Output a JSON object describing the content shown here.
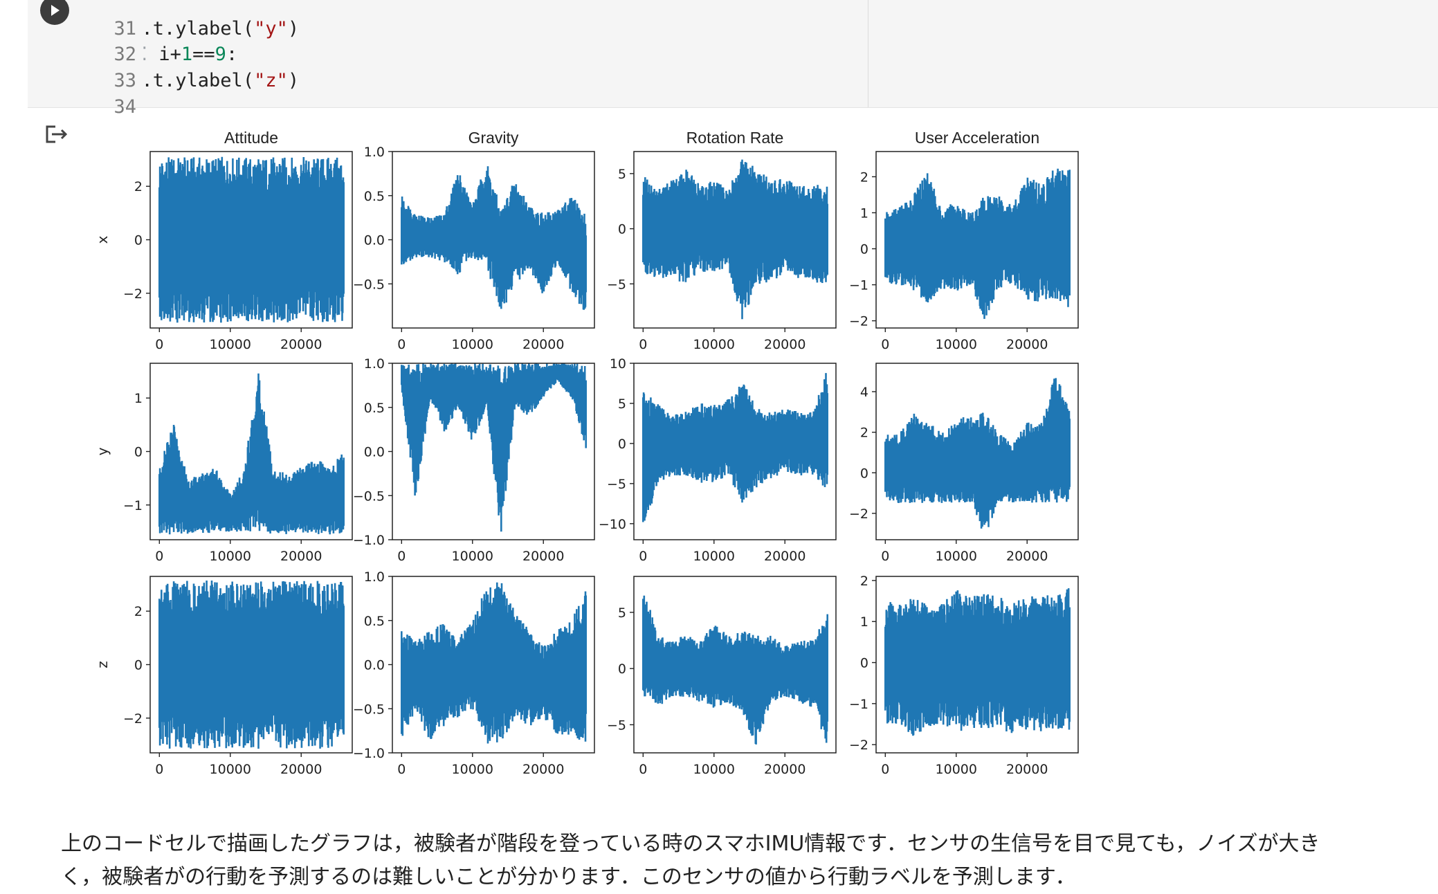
{
  "code_cell": {
    "lines": [
      {
        "num": "31",
        "prefix": ".t.ylabel(",
        "str": "\"y\"",
        "suffix": ")"
      },
      {
        "num": "32",
        "marker": "⁚",
        "code_a": " i+",
        "num_a": "1",
        "code_b": "==",
        "num_b": "9",
        "code_c": ":"
      },
      {
        "num": "33",
        "prefix": ".t.ylabel(",
        "str": "\"z\"",
        "suffix": ")"
      },
      {
        "num": "34"
      }
    ]
  },
  "output": {
    "icon": "output-redirect-icon"
  },
  "colors": {
    "series": "#1f77b4",
    "code_bg": "#f5f5f5"
  },
  "chart_data": [
    {
      "type": "line",
      "title": "Attitude",
      "ylabel": "x",
      "xlim": [
        -1300,
        27200
      ],
      "ylim": [
        -3.3,
        3.3
      ],
      "xticks": [
        "0",
        "10000",
        "20000"
      ],
      "yticks": [
        "2",
        "0",
        "−2"
      ],
      "ytick_values": [
        2,
        0,
        -2
      ],
      "x": [
        0,
        2000,
        4000,
        6000,
        8000,
        10000,
        12000,
        14000,
        16000,
        18000,
        20000,
        22000,
        24000,
        26000
      ],
      "y_max": [
        3.1,
        3.1,
        3.1,
        3.1,
        3.1,
        3.1,
        3.1,
        3.1,
        3.1,
        3.1,
        3.1,
        3.1,
        3.1,
        3.1
      ],
      "y_min": [
        -3.1,
        -3.1,
        -3.1,
        -3.1,
        -3.1,
        -3.1,
        -3.1,
        -3.1,
        -3.1,
        -3.1,
        -3.1,
        -3.1,
        -3.1,
        -3.1
      ]
    },
    {
      "type": "line",
      "title": "Gravity",
      "ylabel": "",
      "xlim": [
        -1300,
        27200
      ],
      "ylim": [
        -1.0,
        1.0
      ],
      "xticks": [
        "0",
        "10000",
        "20000"
      ],
      "yticks": [
        "1.0",
        "0.5",
        "0.0",
        "−0.5"
      ],
      "ytick_values": [
        1.0,
        0.5,
        0.0,
        -0.5
      ],
      "x": [
        0,
        2000,
        4000,
        6000,
        8000,
        10000,
        12000,
        14000,
        16000,
        18000,
        20000,
        22000,
        24000,
        26000
      ],
      "y_max": [
        0.5,
        0.3,
        0.25,
        0.3,
        0.8,
        0.4,
        0.9,
        0.35,
        0.7,
        0.4,
        0.3,
        0.35,
        0.5,
        0.3
      ],
      "y_min": [
        -0.3,
        -0.2,
        -0.2,
        -0.25,
        -0.4,
        -0.2,
        -0.3,
        -0.85,
        -0.5,
        -0.35,
        -0.65,
        -0.25,
        -0.6,
        -0.85
      ]
    },
    {
      "type": "line",
      "title": "Rotation Rate",
      "ylabel": "",
      "xlim": [
        -1300,
        27200
      ],
      "ylim": [
        -9,
        7
      ],
      "xticks": [
        "0",
        "10000",
        "20000"
      ],
      "yticks": [
        "5",
        "0",
        "−5"
      ],
      "ytick_values": [
        5,
        0,
        -5
      ],
      "x": [
        0,
        2000,
        4000,
        6000,
        8000,
        10000,
        12000,
        14000,
        16000,
        18000,
        20000,
        22000,
        24000,
        26000
      ],
      "y_max": [
        5,
        3.5,
        4.5,
        5.5,
        4,
        4.5,
        3.5,
        6.5,
        5.5,
        4.5,
        4.5,
        4,
        4,
        4
      ],
      "y_min": [
        -4,
        -4.5,
        -4.5,
        -5,
        -4,
        -4,
        -3.5,
        -8.5,
        -5,
        -5,
        -4,
        -4.5,
        -5,
        -5
      ]
    },
    {
      "type": "line",
      "title": "User Acceleration",
      "ylabel": "",
      "xlim": [
        -1300,
        27200
      ],
      "ylim": [
        -2.2,
        2.7
      ],
      "xticks": [
        "0",
        "10000",
        "20000"
      ],
      "yticks": [
        "2",
        "1",
        "0",
        "−1",
        "−2"
      ],
      "ytick_values": [
        2,
        1,
        0,
        -1,
        -2
      ],
      "x": [
        0,
        2000,
        4000,
        6000,
        8000,
        10000,
        12000,
        14000,
        16000,
        18000,
        20000,
        22000,
        24000,
        26000
      ],
      "y_max": [
        1.0,
        1.2,
        1.5,
        2.3,
        1.0,
        1.4,
        1.0,
        1.5,
        1.6,
        1.2,
        2.1,
        1.8,
        2.3,
        2.2
      ],
      "y_min": [
        -1.0,
        -1.0,
        -1.2,
        -1.5,
        -1.1,
        -1.2,
        -1.0,
        -2.0,
        -1.1,
        -1.0,
        -1.4,
        -1.5,
        -1.4,
        -1.7
      ]
    },
    {
      "type": "line",
      "title": "",
      "ylabel": "y",
      "xlim": [
        -1300,
        27200
      ],
      "ylim": [
        -1.65,
        1.65
      ],
      "xticks": [
        "0",
        "10000",
        "20000"
      ],
      "yticks": [
        "1",
        "0",
        "−1"
      ],
      "ytick_values": [
        1,
        0,
        -1
      ],
      "x": [
        0,
        2000,
        4000,
        6000,
        8000,
        10000,
        12000,
        14000,
        16000,
        18000,
        20000,
        22000,
        24000,
        26000
      ],
      "y_max": [
        -0.3,
        0.6,
        -0.5,
        -0.4,
        -0.3,
        -0.8,
        -0.3,
        1.6,
        -0.3,
        -0.4,
        -0.3,
        -0.1,
        -0.3,
        0.0
      ],
      "y_min": [
        -1.55,
        -1.55,
        -1.55,
        -1.55,
        -1.5,
        -1.5,
        -1.5,
        -1.55,
        -1.55,
        -1.55,
        -1.55,
        -1.55,
        -1.55,
        -1.55
      ]
    },
    {
      "type": "line",
      "title": "",
      "ylabel": "",
      "xlim": [
        -1300,
        27200
      ],
      "ylim": [
        -1.0,
        1.0
      ],
      "xticks": [
        "0",
        "10000",
        "20000"
      ],
      "yticks": [
        "1.0",
        "0.5",
        "0.0",
        "−0.5",
        "−1.0"
      ],
      "ytick_values": [
        1.0,
        0.5,
        0.0,
        -0.5,
        -1.0
      ],
      "x": [
        0,
        2000,
        4000,
        6000,
        8000,
        10000,
        12000,
        14000,
        16000,
        18000,
        20000,
        22000,
        24000,
        26000
      ],
      "y_max": [
        1.0,
        1.0,
        1.0,
        1.0,
        1.0,
        1.0,
        1.0,
        1.0,
        1.0,
        1.0,
        1.0,
        1.0,
        1.0,
        1.0
      ],
      "y_min": [
        0.7,
        -0.6,
        0.6,
        0.2,
        0.5,
        0.1,
        0.5,
        -0.98,
        0.5,
        0.4,
        0.6,
        0.8,
        0.6,
        0.0
      ]
    },
    {
      "type": "line",
      "title": "",
      "ylabel": "",
      "xlim": [
        -1300,
        27200
      ],
      "ylim": [
        -12,
        10
      ],
      "xticks": [
        "0",
        "10000",
        "20000"
      ],
      "yticks": [
        "10",
        "5",
        "0",
        "−5",
        "−10"
      ],
      "ytick_values": [
        10,
        5,
        0,
        -5,
        -10
      ],
      "x": [
        0,
        2000,
        4000,
        6000,
        8000,
        10000,
        12000,
        14000,
        16000,
        18000,
        20000,
        22000,
        24000,
        26000
      ],
      "y_max": [
        7,
        5,
        3.5,
        4,
        5,
        5,
        5.5,
        8,
        4.5,
        4,
        4.5,
        4,
        4,
        9.5
      ],
      "y_min": [
        -11.5,
        -5,
        -4,
        -4,
        -5,
        -5,
        -4,
        -7.5,
        -5.5,
        -4.5,
        -3.5,
        -4,
        -4,
        -7
      ]
    },
    {
      "type": "line",
      "title": "",
      "ylabel": "",
      "xlim": [
        -1300,
        27200
      ],
      "ylim": [
        -3.3,
        5.4
      ],
      "xticks": [
        "0",
        "10000",
        "20000"
      ],
      "yticks": [
        "4",
        "2",
        "0",
        "−2"
      ],
      "ytick_values": [
        4,
        2,
        0,
        -2
      ],
      "x": [
        0,
        2000,
        4000,
        6000,
        8000,
        10000,
        12000,
        14000,
        16000,
        18000,
        20000,
        22000,
        24000,
        26000
      ],
      "y_max": [
        2,
        2,
        3,
        2.5,
        2,
        2.5,
        3,
        3,
        2,
        1.5,
        2.5,
        2.5,
        5.0,
        3
      ],
      "y_min": [
        -1.5,
        -1.5,
        -1.5,
        -1.5,
        -1.5,
        -1.5,
        -1.5,
        -3.2,
        -1.5,
        -1.5,
        -1.5,
        -1.5,
        -1.5,
        -1.5
      ]
    },
    {
      "type": "line",
      "title": "",
      "ylabel": "z",
      "xlim": [
        -1300,
        27200
      ],
      "ylim": [
        -3.3,
        3.3
      ],
      "xticks": [
        "0",
        "10000",
        "20000"
      ],
      "yticks": [
        "2",
        "0",
        "−2"
      ],
      "ytick_values": [
        2,
        0,
        -2
      ],
      "x": [
        0,
        2000,
        4000,
        6000,
        8000,
        10000,
        12000,
        14000,
        16000,
        18000,
        20000,
        22000,
        24000,
        26000
      ],
      "y_max": [
        3.15,
        3.15,
        3.15,
        3.15,
        3.15,
        3.15,
        3.15,
        3.15,
        3.15,
        3.15,
        3.15,
        3.15,
        3.15,
        3.15
      ],
      "y_min": [
        -3.15,
        -3.15,
        -3.15,
        -3.15,
        -3.15,
        -3.15,
        -3.15,
        -3.15,
        -3.15,
        -3.15,
        -3.15,
        -3.15,
        -3.15,
        -3.15
      ]
    },
    {
      "type": "line",
      "title": "",
      "ylabel": "",
      "xlim": [
        -1300,
        27200
      ],
      "ylim": [
        -1.0,
        1.0
      ],
      "xticks": [
        "0",
        "10000",
        "20000"
      ],
      "yticks": [
        "1.0",
        "0.5",
        "0.0",
        "−0.5",
        "−1.0"
      ],
      "ytick_values": [
        1.0,
        0.5,
        0.0,
        -0.5,
        -1.0
      ],
      "x": [
        0,
        2000,
        4000,
        6000,
        8000,
        10000,
        12000,
        14000,
        16000,
        18000,
        20000,
        22000,
        24000,
        26000
      ],
      "y_max": [
        0.4,
        0.3,
        0.4,
        0.5,
        0.3,
        0.5,
        0.9,
        0.95,
        0.6,
        0.4,
        0.2,
        0.4,
        0.5,
        0.9
      ],
      "y_min": [
        -0.9,
        -0.5,
        -0.9,
        -0.7,
        -0.6,
        -0.5,
        -0.9,
        -0.9,
        -0.6,
        -0.7,
        -0.6,
        -0.8,
        -0.8,
        -0.9
      ]
    },
    {
      "type": "line",
      "title": "",
      "ylabel": "",
      "xlim": [
        -1300,
        27200
      ],
      "ylim": [
        -7.5,
        8.2
      ],
      "xticks": [
        "0",
        "10000",
        "20000"
      ],
      "yticks": [
        "5",
        "0",
        "−5"
      ],
      "ytick_values": [
        5,
        0,
        -5
      ],
      "x": [
        0,
        2000,
        4000,
        6000,
        8000,
        10000,
        12000,
        14000,
        16000,
        18000,
        20000,
        22000,
        24000,
        26000
      ],
      "y_max": [
        7.5,
        3,
        2.5,
        3,
        2.5,
        4,
        3,
        3.5,
        3,
        3,
        2,
        2.5,
        2.5,
        5
      ],
      "y_min": [
        -2.5,
        -3.5,
        -2.5,
        -2.5,
        -3,
        -3.5,
        -3,
        -4,
        -7,
        -3,
        -2.5,
        -3,
        -3.5,
        -7
      ]
    },
    {
      "type": "line",
      "title": "",
      "ylabel": "",
      "xlim": [
        -1300,
        27200
      ],
      "ylim": [
        -2.2,
        2.1
      ],
      "xticks": [
        "0",
        "10000",
        "20000"
      ],
      "yticks": [
        "2",
        "1",
        "0",
        "−1",
        "−2"
      ],
      "ytick_values": [
        2,
        1,
        0,
        -1,
        -2
      ],
      "x": [
        0,
        2000,
        4000,
        6000,
        8000,
        10000,
        12000,
        14000,
        16000,
        18000,
        20000,
        22000,
        24000,
        26000
      ],
      "y_max": [
        1.5,
        1.5,
        1.6,
        1.4,
        1.5,
        1.8,
        1.6,
        1.7,
        1.6,
        1.5,
        1.6,
        1.7,
        1.6,
        1.9
      ],
      "y_min": [
        -1.5,
        -1.6,
        -1.8,
        -1.6,
        -1.5,
        -1.7,
        -1.6,
        -1.6,
        -1.6,
        -1.8,
        -1.7,
        -1.7,
        -1.6,
        -1.8
      ]
    }
  ],
  "text": {
    "line1": "上のコードセルで描画したグラフは，被験者が階段を登っている時のスマホIMU情報です．センサの生信号を目で見ても，ノイズが大き",
    "line2": "く，被験者がの行動を予測するのは難しいことが分かります．このセンサの値から行動ラベルを予測します．"
  }
}
